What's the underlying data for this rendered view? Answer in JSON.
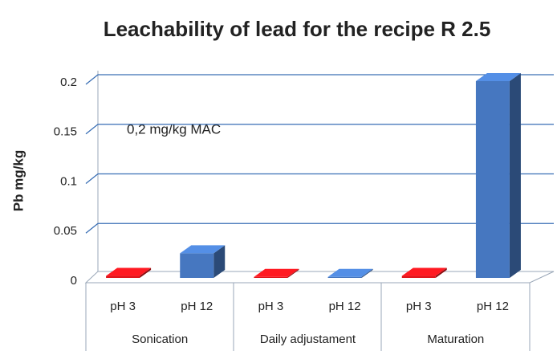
{
  "chart_data": {
    "type": "bar3d",
    "title": "Leachability of lead for the recipe R 2.5",
    "ylabel": "Pb mg/kg",
    "annotation": "0,2 mg/kg MAC",
    "groups": [
      "Sonication",
      "Daily adjustament",
      "Maturation"
    ],
    "categories": [
      "pH 3",
      "pH 12",
      "pH 3",
      "pH 12",
      "pH 3",
      "pH 12"
    ],
    "values": [
      0.002,
      0.025,
      0.001,
      0.001,
      0.002,
      0.2
    ],
    "colors": [
      "#e0161c",
      "#4677c0",
      "#e0161c",
      "#4677c0",
      "#e0161c",
      "#4677c0"
    ],
    "ylim": [
      0,
      0.2
    ],
    "yticks": [
      0,
      0.05,
      0.1,
      0.15,
      0.2
    ],
    "grid": true
  }
}
